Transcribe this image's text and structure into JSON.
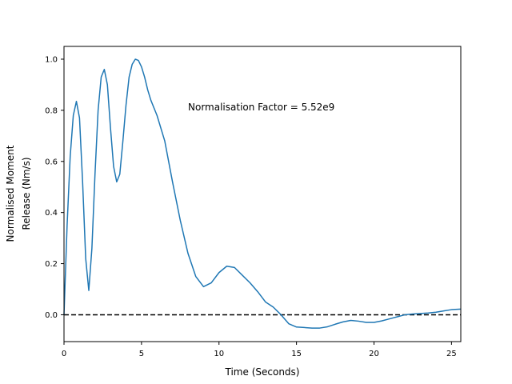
{
  "chart_data": {
    "type": "line",
    "title": "",
    "xlabel": "Time (Seconds)",
    "ylabel_lines": [
      "Normalised Moment",
      "Release (Nm/s)"
    ],
    "xlim": [
      0,
      25.6
    ],
    "ylim": [
      -0.105,
      1.05
    ],
    "x_ticks": [
      0,
      5,
      10,
      15,
      20,
      25
    ],
    "y_ticks": [
      0.0,
      0.2,
      0.4,
      0.6,
      0.8,
      1.0
    ],
    "x_tick_labels": [
      "0",
      "5",
      "10",
      "15",
      "20",
      "25"
    ],
    "y_tick_labels": [
      "0.0",
      "0.2",
      "0.4",
      "0.6",
      "0.8",
      "1.0"
    ],
    "annotation": {
      "text": "Normalisation Factor = 5.52e9",
      "x": 8.0,
      "y": 0.8
    },
    "reference_line": {
      "y": 0.0,
      "style": "dashed",
      "color": "#000000"
    },
    "grid": false,
    "series": [
      {
        "color": "#1f77b4",
        "x": [
          0.0,
          0.2,
          0.4,
          0.6,
          0.8,
          1.0,
          1.2,
          1.4,
          1.6,
          1.8,
          2.0,
          2.2,
          2.4,
          2.6,
          2.8,
          3.0,
          3.2,
          3.4,
          3.6,
          3.8,
          4.0,
          4.2,
          4.4,
          4.6,
          4.8,
          5.0,
          5.2,
          5.4,
          5.6,
          6.0,
          6.5,
          7.0,
          7.5,
          8.0,
          8.5,
          9.0,
          9.5,
          10.0,
          10.5,
          11.0,
          11.5,
          12.0,
          12.5,
          13.0,
          13.5,
          14.0,
          14.5,
          15.0,
          15.5,
          16.0,
          16.5,
          17.0,
          17.5,
          18.0,
          18.5,
          19.0,
          19.5,
          20.0,
          20.5,
          21.0,
          21.5,
          22.0,
          22.5,
          23.0,
          23.5,
          24.0,
          24.5,
          25.0,
          25.6
        ],
        "y": [
          0.0,
          0.35,
          0.62,
          0.78,
          0.835,
          0.77,
          0.52,
          0.22,
          0.095,
          0.26,
          0.55,
          0.8,
          0.93,
          0.96,
          0.9,
          0.73,
          0.58,
          0.52,
          0.55,
          0.68,
          0.82,
          0.93,
          0.98,
          1.0,
          0.995,
          0.97,
          0.93,
          0.88,
          0.84,
          0.78,
          0.68,
          0.52,
          0.37,
          0.24,
          0.15,
          0.11,
          0.125,
          0.165,
          0.19,
          0.185,
          0.155,
          0.125,
          0.09,
          0.05,
          0.03,
          0.0,
          -0.035,
          -0.048,
          -0.05,
          -0.052,
          -0.052,
          -0.047,
          -0.037,
          -0.028,
          -0.022,
          -0.025,
          -0.03,
          -0.03,
          -0.024,
          -0.016,
          -0.008,
          0.0,
          0.003,
          0.005,
          0.007,
          0.01,
          0.015,
          0.02,
          0.022
        ]
      }
    ]
  }
}
